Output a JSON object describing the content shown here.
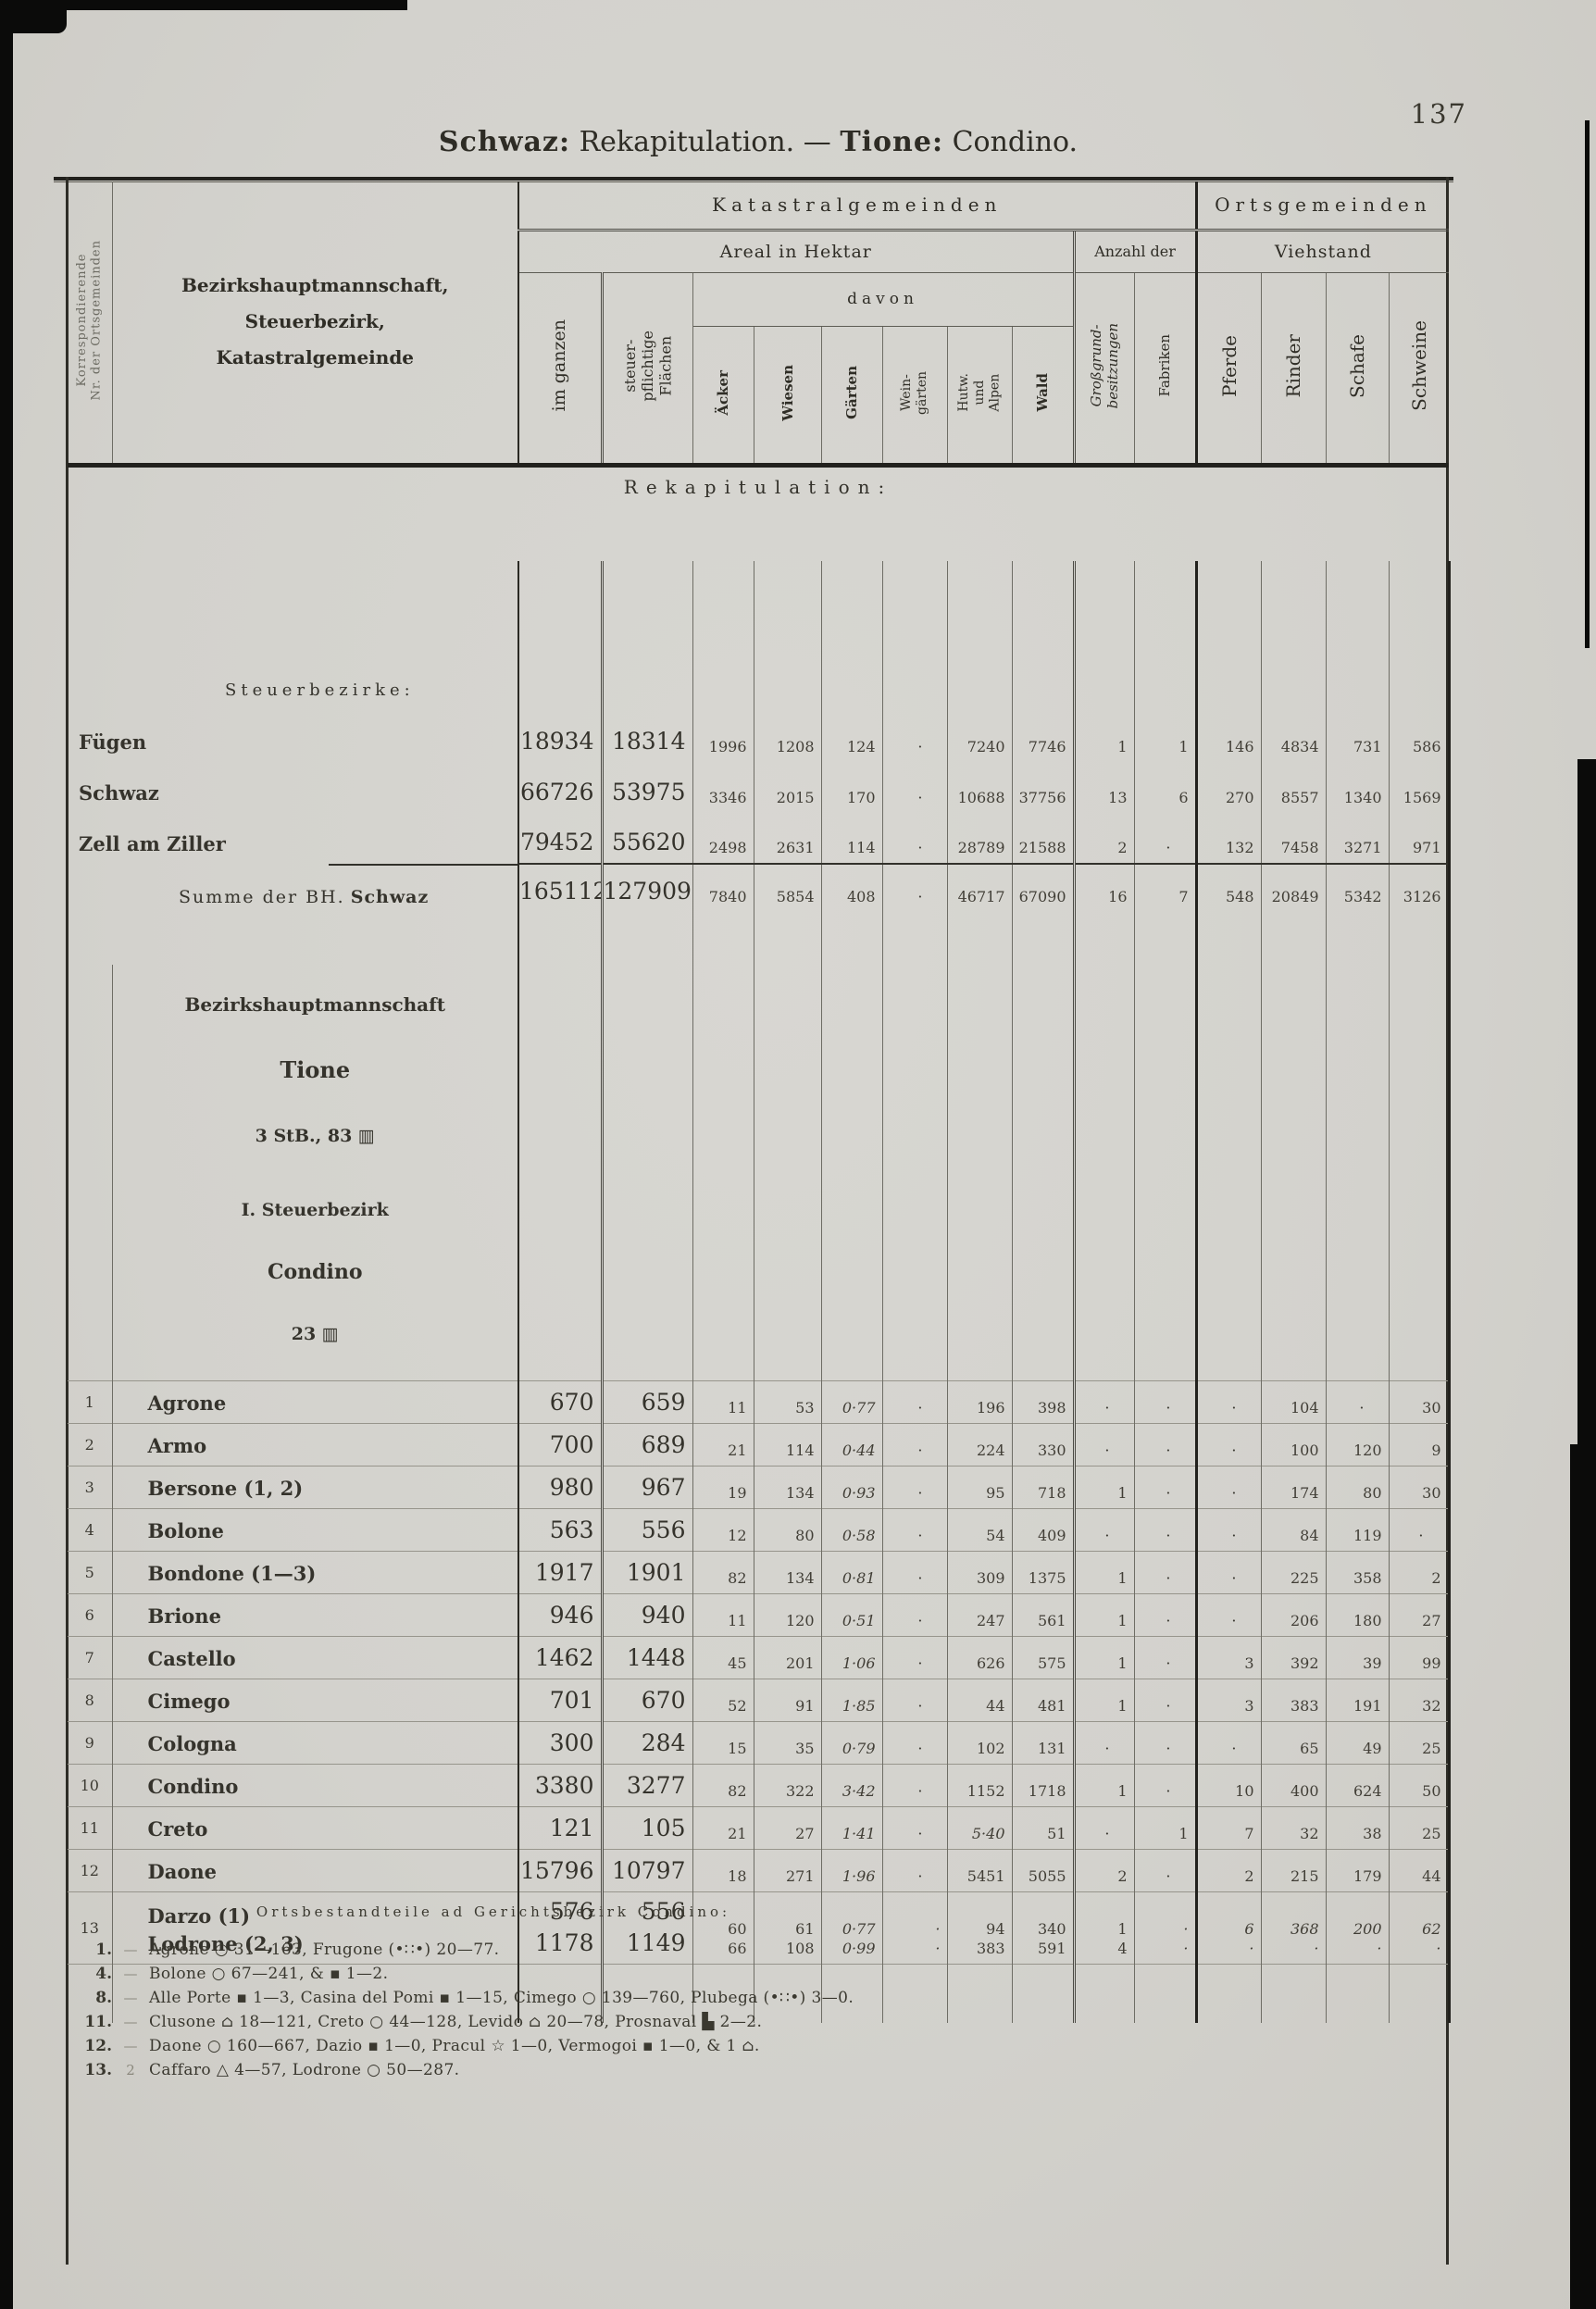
{
  "page": {
    "number": "137",
    "title": {
      "bold1": "Schwaz:",
      "text1": "Rekapitulation.",
      "dash": "—",
      "bold2": "Tione:",
      "text2": "Condino."
    }
  },
  "palette": {
    "paper": "#d5d4d0",
    "ink": "#35332c",
    "heavy_rule": "#22211d",
    "thin_rule": "#6e6d65"
  },
  "columns": [
    "im_ganzen",
    "steuerpflichtig",
    "aecker",
    "wiesen",
    "gaerten",
    "weingaerten",
    "hutweiden_alpen",
    "wald",
    "grossgrund",
    "fabriken",
    "pferde",
    "rinder",
    "schafe",
    "schweine"
  ],
  "header": {
    "corr_line1": "Korrespondierende",
    "corr_line2": "Nr. der Ortsgemeinden",
    "name_line1": "Bezirkshauptmannschaft,",
    "name_line2": "Steuerbezirk,",
    "name_line3": "Katastralgemeinde",
    "kataster": "Katastralgemeinden",
    "orts": "Ortsgemeinden",
    "areal": "Areal in Hektar",
    "anzahl": "Anzahl der",
    "viehstand": "Viehstand",
    "davon": "davon",
    "cols": {
      "im_ganzen": "im ganzen",
      "steuerpflichtig": "steuer-\npflichtige\nFlächen",
      "aecker": "Äcker",
      "wiesen": "Wiesen",
      "gaerten": "Gärten",
      "weingaerten": "Wein-\ngärten",
      "hutweiden_alpen": "Hutw.\nund\nAlpen",
      "wald": "Wald",
      "grossgrund": "Großgrund-\nbesitzungen",
      "fabriken": "Fabriken",
      "pferde": "Pferde",
      "rinder": "Rinder",
      "schafe": "Schafe",
      "schweine": "Schweine"
    }
  },
  "rekap": {
    "heading": "Rekapitulation:",
    "sub": "Steuerbezirke:",
    "rows": [
      {
        "name": "Fügen",
        "values": [
          "18934",
          "18314",
          "1996",
          "1208",
          "124",
          "·",
          "7240",
          "7746",
          "1",
          "1",
          "146",
          "4834",
          "731",
          "586"
        ]
      },
      {
        "name": "Schwaz",
        "values": [
          "66726",
          "53975",
          "3346",
          "2015",
          "170",
          "·",
          "10688",
          "37756",
          "13",
          "6",
          "270",
          "8557",
          "1340",
          "1569"
        ]
      },
      {
        "name": "Zell am Ziller",
        "values": [
          "79452",
          "55620",
          "2498",
          "2631",
          "114",
          "·",
          "28789",
          "21588",
          "2",
          "·",
          "132",
          "7458",
          "3271",
          "971"
        ]
      }
    ],
    "sum": {
      "label_normal": "Summe der BH.",
      "label_bold": "Schwaz",
      "values": [
        "165112",
        "127909",
        "7840",
        "5854",
        "408",
        "·",
        "46717",
        "67090",
        "16",
        "7",
        "548",
        "20849",
        "5342",
        "3126"
      ]
    }
  },
  "condino": {
    "bh_label": "Bezirkshauptmannschaft",
    "bh_name": "Tione",
    "bh_sub": "3 StB., 83 ▥",
    "stb_label": "I. Steuerbezirk",
    "stb_name": "Condino",
    "stb_sub": "23 ▥",
    "rows": [
      {
        "nr": "1",
        "name": "Agrone",
        "values": [
          "670",
          "659",
          "11",
          "53",
          "0·77",
          "·",
          "196",
          "398",
          "·",
          "·",
          "·",
          "104",
          "·",
          "30"
        ]
      },
      {
        "nr": "2",
        "name": "Armo",
        "values": [
          "700",
          "689",
          "21",
          "114",
          "0·44",
          "·",
          "224",
          "330",
          "·",
          "·",
          "·",
          "100",
          "120",
          "9"
        ]
      },
      {
        "nr": "3",
        "name": "Bersone (1, 2)",
        "values": [
          "980",
          "967",
          "19",
          "134",
          "0·93",
          "·",
          "95",
          "718",
          "1",
          "·",
          "·",
          "174",
          "80",
          "30"
        ]
      },
      {
        "nr": "4",
        "name": "Bolone",
        "values": [
          "563",
          "556",
          "12",
          "80",
          "0·58",
          "·",
          "54",
          "409",
          "·",
          "·",
          "·",
          "84",
          "119",
          "·"
        ]
      },
      {
        "nr": "5",
        "name": "Bondone (1—3)",
        "values": [
          "1917",
          "1901",
          "82",
          "134",
          "0·81",
          "·",
          "309",
          "1375",
          "1",
          "·",
          "·",
          "225",
          "358",
          "2"
        ]
      },
      {
        "nr": "6",
        "name": "Brione",
        "values": [
          "946",
          "940",
          "11",
          "120",
          "0·51",
          "·",
          "247",
          "561",
          "1",
          "·",
          "·",
          "206",
          "180",
          "27"
        ]
      },
      {
        "nr": "7",
        "name": "Castello",
        "values": [
          "1462",
          "1448",
          "45",
          "201",
          "1·06",
          "·",
          "626",
          "575",
          "1",
          "·",
          "3",
          "392",
          "39",
          "99"
        ]
      },
      {
        "nr": "8",
        "name": "Cimego",
        "values": [
          "701",
          "670",
          "52",
          "91",
          "1·85",
          "·",
          "44",
          "481",
          "1",
          "·",
          "3",
          "383",
          "191",
          "32"
        ]
      },
      {
        "nr": "9",
        "name": "Cologna",
        "values": [
          "300",
          "284",
          "15",
          "35",
          "0·79",
          "·",
          "102",
          "131",
          "·",
          "·",
          "·",
          "65",
          "49",
          "25"
        ]
      },
      {
        "nr": "10",
        "name": "Condino",
        "values": [
          "3380",
          "3277",
          "82",
          "322",
          "3·42",
          "·",
          "1152",
          "1718",
          "1",
          "·",
          "10",
          "400",
          "624",
          "50"
        ]
      },
      {
        "nr": "11",
        "name": "Creto",
        "values": [
          "121",
          "105",
          "21",
          "27",
          "1·41",
          "·",
          "5·40",
          "51",
          "·",
          "1",
          "7",
          "32",
          "38",
          "25"
        ]
      },
      {
        "nr": "12",
        "name": "Daone",
        "values": [
          "15796",
          "10797",
          "18",
          "271",
          "1·96",
          "·",
          "5451",
          "5055",
          "2",
          "·",
          "2",
          "215",
          "179",
          "44"
        ]
      },
      {
        "nr": "13",
        "name": "Darzo (1)",
        "name2": "Lodrone (2, 3)",
        "values": [
          "576",
          "556",
          "60",
          "61",
          "0·77",
          "·",
          "94",
          "340",
          "1",
          "·",
          "6",
          "368",
          "200",
          "62"
        ],
        "values2": [
          "1178",
          "1149",
          "66",
          "108",
          "0·99",
          "·",
          "383",
          "591",
          "4",
          "·",
          "·",
          "·",
          "·",
          "·"
        ]
      }
    ]
  },
  "footnotes": {
    "heading": "Ortsbestandteile ad Gerichtsbezirk Condino:",
    "lines": [
      {
        "nr": "1.",
        "mark": "—",
        "text": "Agrone ○ 31—163, Frugone (•∷•) 20—77."
      },
      {
        "nr": "4.",
        "mark": "—",
        "text": "Bolone ○ 67—241, & ▪ 1—2."
      },
      {
        "nr": "8.",
        "mark": "—",
        "text": "Alle Porte ▪ 1—3, Casina del Pomi ▪ 1—15, Cimego ○ 139—760, Plubega (•∷•) 3—0."
      },
      {
        "nr": "11.",
        "mark": "—",
        "text": "Clusone ⌂ 18—121, Creto ○ 44—128, Levido ⌂ 20—78, Prosnaval ▙ 2—2."
      },
      {
        "nr": "12.",
        "mark": "—",
        "text": "Daone ○ 160—667, Dazio ▪ 1—0, Pracul ☆ 1—0, Vermogoi ▪ 1—0, & 1 ⌂."
      },
      {
        "nr": "13.",
        "mark": "2",
        "text": "Caffaro △ 4—57, Lodrone ○ 50—287."
      }
    ]
  }
}
